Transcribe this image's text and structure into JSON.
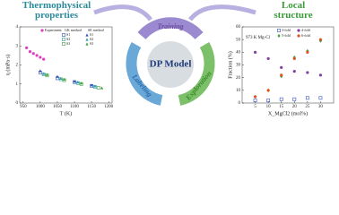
{
  "header": {
    "left_title": "Thermophysical properties",
    "right_title": "Local structure"
  },
  "diagram": {
    "center": "DP Model",
    "steps": [
      "Training",
      "Exploration",
      "Labeling"
    ]
  },
  "chart_data": [
    {
      "type": "scatter",
      "xlabel": "T (K)",
      "ylabel": "η (mPa·s)",
      "xlim": [
        940,
        1210
      ],
      "ylim": [
        0,
        4
      ],
      "xticks": [
        950,
        1000,
        1050,
        1100,
        1150,
        1200
      ],
      "yticks": [
        0,
        1,
        2,
        3,
        4
      ],
      "series": [
        {
          "name": "Experiment",
          "color": "#e040c0",
          "marker": "circle",
          "x": [
            960,
            970,
            980,
            990,
            1000,
            1010
          ],
          "values": [
            2.9,
            2.7,
            2.6,
            2.5,
            2.4,
            2.3
          ]
        }
      ],
      "groups": [
        {
          "name": "GK method",
          "series": [
            {
              "name": "S1",
              "color": "#3050c0",
              "marker": "square",
              "x": [
                1000,
                1050,
                1100,
                1150
              ],
              "values": [
                1.6,
                1.3,
                1.1,
                0.9
              ]
            },
            {
              "name": "S2",
              "color": "#30a0a0",
              "marker": "square",
              "x": [
                1010,
                1060,
                1110,
                1160
              ],
              "values": [
                1.5,
                1.25,
                1.05,
                0.85
              ]
            },
            {
              "name": "S3",
              "color": "#40a040",
              "marker": "square",
              "x": [
                1020,
                1070,
                1120,
                1170
              ],
              "values": [
                1.45,
                1.2,
                1.0,
                0.8
              ]
            }
          ]
        },
        {
          "name": "SE method",
          "series": [
            {
              "name": "S1",
              "color": "#3050c0",
              "marker": "triangle",
              "x": [
                1000,
                1050,
                1100,
                1150
              ],
              "values": [
                1.7,
                1.4,
                1.15,
                0.95
              ]
            },
            {
              "name": "S2",
              "color": "#30a0a0",
              "marker": "triangle",
              "x": [
                1010,
                1060,
                1110,
                1160
              ],
              "values": [
                1.55,
                1.3,
                1.1,
                0.9
              ]
            },
            {
              "name": "S3",
              "color": "#40a040",
              "marker": "triangle",
              "x": [
                1020,
                1070,
                1120,
                1180
              ],
              "values": [
                1.5,
                1.25,
                1.05,
                0.8
              ]
            }
          ]
        }
      ]
    },
    {
      "type": "scatter",
      "xlabel": "X_MgCl2 (mol%)",
      "ylabel": "Fraction (%)",
      "annotation": "973 K Mg-Cl",
      "xlim": [
        0,
        35
      ],
      "ylim": [
        0,
        60
      ],
      "xticks": [
        5,
        10,
        15,
        20,
        25,
        30
      ],
      "yticks": [
        0,
        10,
        20,
        30,
        40,
        50,
        60
      ],
      "x": [
        5,
        10,
        15,
        20,
        25,
        30
      ],
      "series": [
        {
          "name": "3-fold",
          "color": "#3050c0",
          "marker": "square",
          "values": [
            2,
            2,
            3,
            3,
            4,
            4
          ]
        },
        {
          "name": "4-fold",
          "color": "#8040a0",
          "marker": "circle",
          "values": [
            40,
            35,
            28,
            25,
            24,
            22
          ]
        },
        {
          "name": "5-fold",
          "color": "#40a040",
          "marker": "diamond",
          "values": [
            5,
            10,
            21,
            36,
            41,
            49
          ]
        },
        {
          "name": "6-fold",
          "color": "#e05020",
          "marker": "circle",
          "values": [
            5,
            10,
            22,
            35,
            40,
            50
          ]
        }
      ]
    }
  ]
}
